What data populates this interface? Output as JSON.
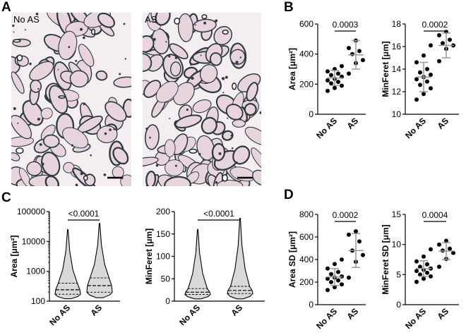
{
  "panels": {
    "A": {
      "letter": "A",
      "images": [
        {
          "label": "No AS"
        },
        {
          "label": "AS"
        }
      ]
    },
    "B": {
      "letter": "B"
    },
    "C": {
      "letter": "C"
    },
    "D": {
      "letter": "D"
    }
  },
  "colors": {
    "points": "#000000",
    "error_bars": "#999999",
    "violin_fill": "#d9d9d9",
    "tissue": "#e8d4dc",
    "stroma": "#2d3a42"
  },
  "chart_data": [
    {
      "id": "B-area",
      "type": "scatter",
      "ylabel": "Area [μm²]",
      "ylim": [
        0,
        600
      ],
      "yticks": [
        "0",
        "200",
        "400",
        "600"
      ],
      "categories": [
        "No AS",
        "AS"
      ],
      "series": [
        {
          "values": [
            155,
            175,
            190,
            205,
            215,
            225,
            235,
            250,
            260,
            270,
            285,
            300,
            320
          ],
          "mean": 241,
          "sd": 50
        },
        {
          "values": [
            270,
            340,
            360,
            400,
            420,
            440,
            490
          ],
          "mean": 395,
          "sd": 95
        }
      ],
      "significance": "0.0003"
    },
    {
      "id": "B-minferet",
      "type": "scatter",
      "ylabel": "MinFeret [μm]",
      "ylim": [
        10,
        18
      ],
      "yticks": [
        "10",
        "12",
        "14",
        "16",
        "18"
      ],
      "categories": [
        "No AS",
        "AS"
      ],
      "series": [
        {
          "values": [
            11.3,
            11.8,
            12.3,
            12.6,
            12.9,
            13.1,
            13.3,
            13.5,
            13.7,
            14.0,
            14.6,
            15.2,
            16.1
          ],
          "mean": 13.3,
          "sd": 1.3
        },
        {
          "values": [
            14.7,
            15.8,
            16.1,
            16.3,
            16.6,
            17.0,
            17.3
          ],
          "mean": 16.1,
          "sd": 1.1
        }
      ],
      "significance": "0.0002"
    },
    {
      "id": "C-area",
      "type": "violin",
      "ylabel": "Area [μm²]",
      "yscale": "log",
      "ylim": [
        100,
        100000
      ],
      "yticks": [
        "100",
        "1000",
        "10000",
        "100000"
      ],
      "categories": [
        "No AS",
        "AS"
      ],
      "series": [
        {
          "min": 120,
          "q1": 170,
          "median": 240,
          "q3": 400,
          "max": 25000
        },
        {
          "min": 130,
          "q1": 200,
          "median": 330,
          "q3": 600,
          "max": 40000
        }
      ],
      "significance": "<0.0001"
    },
    {
      "id": "C-minferet",
      "type": "violin",
      "ylabel": "MinFeret [μm]",
      "ylim": [
        0,
        200
      ],
      "yticks": [
        "0",
        "50",
        "100",
        "150",
        "200"
      ],
      "categories": [
        "No AS",
        "AS"
      ],
      "series": [
        {
          "min": 5,
          "q1": 15,
          "median": 20,
          "q3": 28,
          "max": 160
        },
        {
          "min": 5,
          "q1": 17,
          "median": 24,
          "q3": 33,
          "max": 185
        }
      ],
      "significance": "<0.0001"
    },
    {
      "id": "D-areasd",
      "type": "scatter",
      "ylabel": "Area SD [μm²]",
      "ylim": [
        0,
        800
      ],
      "yticks": [
        "0",
        "200",
        "400",
        "600",
        "800"
      ],
      "categories": [
        "No AS",
        "AS"
      ],
      "series": [
        {
          "values": [
            130,
            155,
            180,
            200,
            215,
            230,
            240,
            250,
            270,
            290,
            320,
            360,
            400
          ],
          "mean": 245,
          "sd": 75
        },
        {
          "values": [
            240,
            380,
            440,
            480,
            560,
            620,
            650
          ],
          "mean": 480,
          "sd": 150
        }
      ],
      "significance": "0.0002"
    },
    {
      "id": "D-minferetsd",
      "type": "scatter",
      "ylabel": "MinFeret SD [μm]",
      "ylim": [
        0,
        15
      ],
      "yticks": [
        "0",
        "5",
        "10",
        "15"
      ],
      "categories": [
        "No AS",
        "AS"
      ],
      "series": [
        {
          "values": [
            3.8,
            4.3,
            4.7,
            5.0,
            5.3,
            5.6,
            5.8,
            6.0,
            6.3,
            6.7,
            7.2,
            8.0,
            9.2
          ],
          "mean": 6.0,
          "sd": 1.3
        },
        {
          "values": [
            6.3,
            7.6,
            8.6,
            9.0,
            9.3,
            10.0,
            10.6
          ],
          "mean": 8.9,
          "sd": 1.4
        }
      ],
      "significance": "0.0004"
    }
  ]
}
